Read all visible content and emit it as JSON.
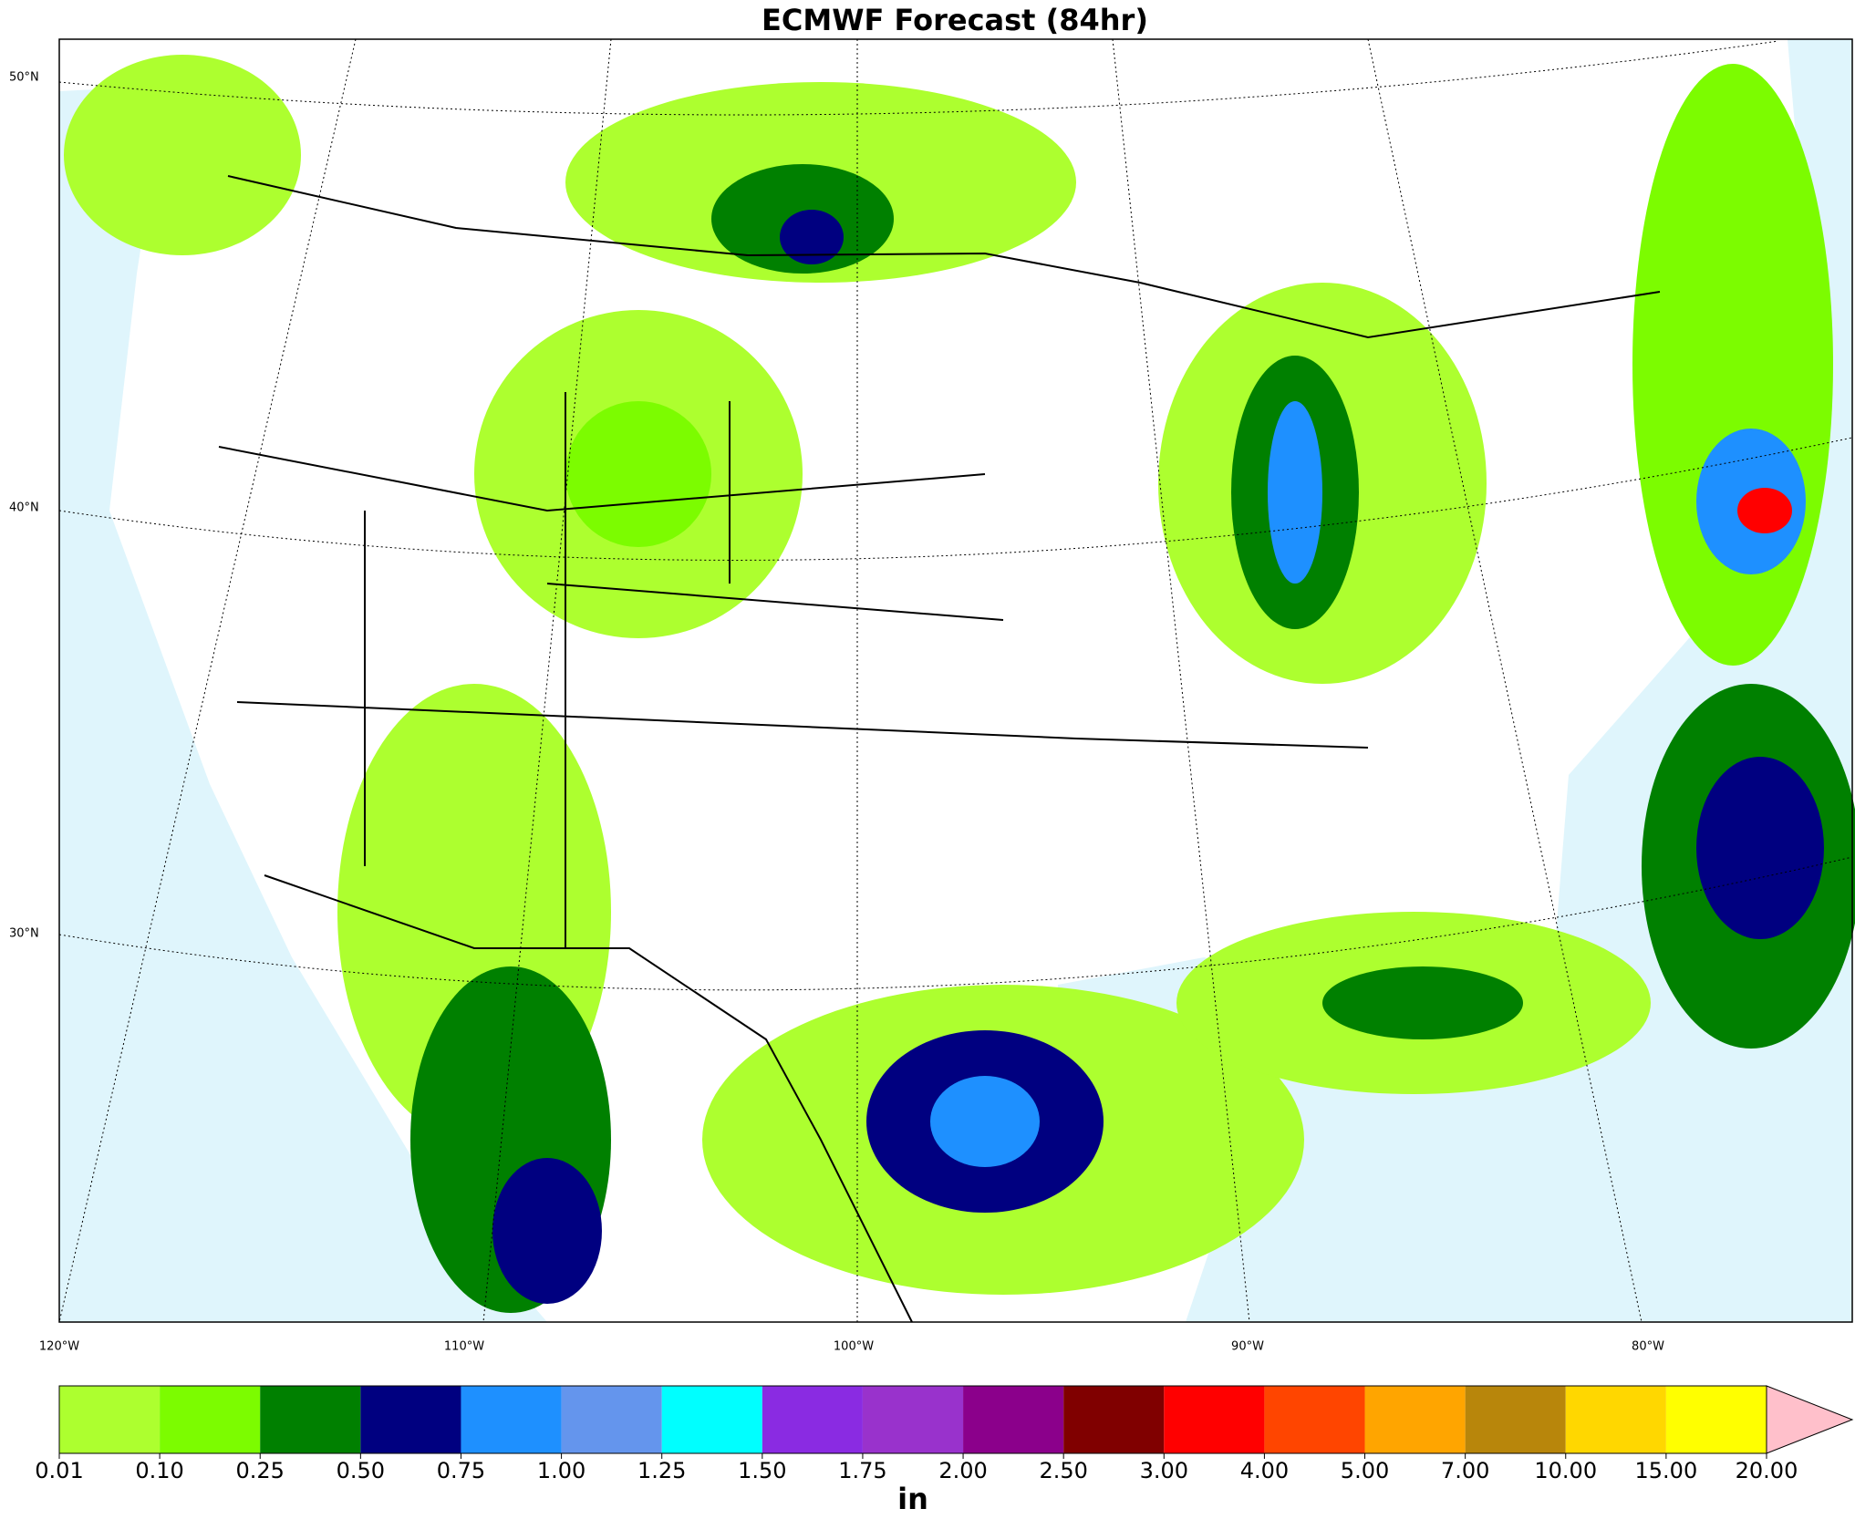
{
  "title": "ECMWF Forecast (84hr)",
  "lat_labels": [
    "50°N",
    "40°N",
    "30°N"
  ],
  "lon_labels": [
    "120°W",
    "110°W",
    "100°W",
    "90°W",
    "80°W"
  ],
  "colorbar": {
    "unit": "in",
    "ticks": [
      {
        "value": 0.01,
        "label": "0.01"
      },
      {
        "value": 0.1,
        "label": "0.10"
      },
      {
        "value": 0.25,
        "label": "0.25"
      },
      {
        "value": 0.5,
        "label": "0.50"
      },
      {
        "value": 0.75,
        "label": "0.75"
      },
      {
        "value": 1,
        "label": "1.00"
      },
      {
        "value": 1.25,
        "label": "1.25"
      },
      {
        "value": 1.5,
        "label": "1.50"
      },
      {
        "value": 1.75,
        "label": "1.75"
      },
      {
        "value": 2,
        "label": "2.00"
      },
      {
        "value": 2.5,
        "label": "2.50"
      },
      {
        "value": 3,
        "label": "3.00"
      },
      {
        "value": 4,
        "label": "4.00"
      },
      {
        "value": 5,
        "label": "5.00"
      },
      {
        "value": 7,
        "label": "7.00"
      },
      {
        "value": 10,
        "label": "10.00"
      },
      {
        "value": 15,
        "label": "15.00"
      },
      {
        "value": 20,
        "label": "20.00"
      }
    ],
    "colors": [
      "#adff2f",
      "#7cfc00",
      "#008000",
      "#000080",
      "#1e90ff",
      "#6495ed",
      "#00ffff",
      "#8a2be2",
      "#9932cc",
      "#8b008b",
      "#800000",
      "#ff0000",
      "#ff4500",
      "#ffa500",
      "#b8860b",
      "#ffd700",
      "#ffff00"
    ],
    "extend_color": "#ffc0cb"
  }
}
